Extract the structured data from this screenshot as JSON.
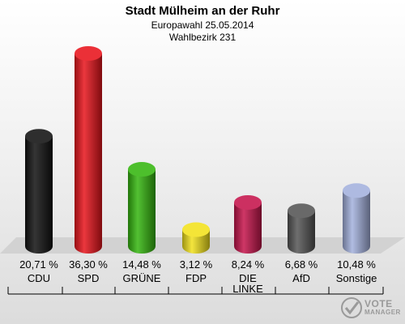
{
  "header": {
    "title": "Stadt Mülheim an der Ruhr",
    "subtitle": "Europawahl 25.05.2014",
    "district": "Wahlbezirk 231"
  },
  "chart_data": {
    "type": "bar",
    "title": "Stadt Mülheim an der Ruhr",
    "subtitle": "Europawahl 25.05.2014 / Wahlbezirk 231",
    "categories": [
      "CDU",
      "SPD",
      "GRÜNE",
      "FDP",
      "DIE LINKE",
      "AfD",
      "Sonstige"
    ],
    "values": [
      20.71,
      36.3,
      14.48,
      3.12,
      8.24,
      6.68,
      10.48
    ],
    "value_labels": [
      "20,71 %",
      "36,30 %",
      "14,48 %",
      "3,12 %",
      "8,24 %",
      "6,68 %",
      "10,48 %"
    ],
    "colors": [
      "#111111",
      "#e8141c",
      "#35b60f",
      "#f2e21c",
      "#c5144b",
      "#555555",
      "#a3b1dd"
    ],
    "unit": "%",
    "ylim": [
      0,
      40
    ],
    "grid": false,
    "legend": "none"
  },
  "logo": {
    "line1": "VOTE",
    "line2": "MANAGER",
    "icon": "checkmark-ballot-icon"
  }
}
